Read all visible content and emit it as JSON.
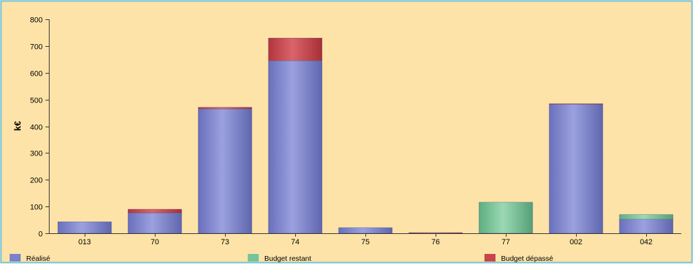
{
  "chart_data": {
    "type": "bar",
    "stacked": true,
    "title": "",
    "xlabel": "",
    "ylabel": "k€",
    "ylim": [
      0,
      800
    ],
    "yticks": [
      0,
      100,
      200,
      300,
      400,
      500,
      600,
      700,
      800
    ],
    "grid": false,
    "legend_position": "bottom",
    "categories": [
      "013",
      "70",
      "73",
      "74",
      "75",
      "76",
      "77",
      "002",
      "042"
    ],
    "series": [
      {
        "name": "Réalisé",
        "color": "#7b82c9",
        "values": [
          43,
          76,
          465,
          645,
          21,
          0,
          0,
          482,
          52
        ]
      },
      {
        "name": "Budget restant",
        "color": "#78c49a",
        "values": [
          0,
          0,
          0,
          0,
          0,
          0,
          116,
          0,
          18
        ]
      },
      {
        "name": "Budget dépassé",
        "color": "#c8454c",
        "values": [
          0,
          14,
          6,
          85,
          0,
          2,
          0,
          2,
          0
        ]
      }
    ],
    "colors": {
      "plot_background": "#fde3a7",
      "frame": "#6ec6e8"
    }
  }
}
